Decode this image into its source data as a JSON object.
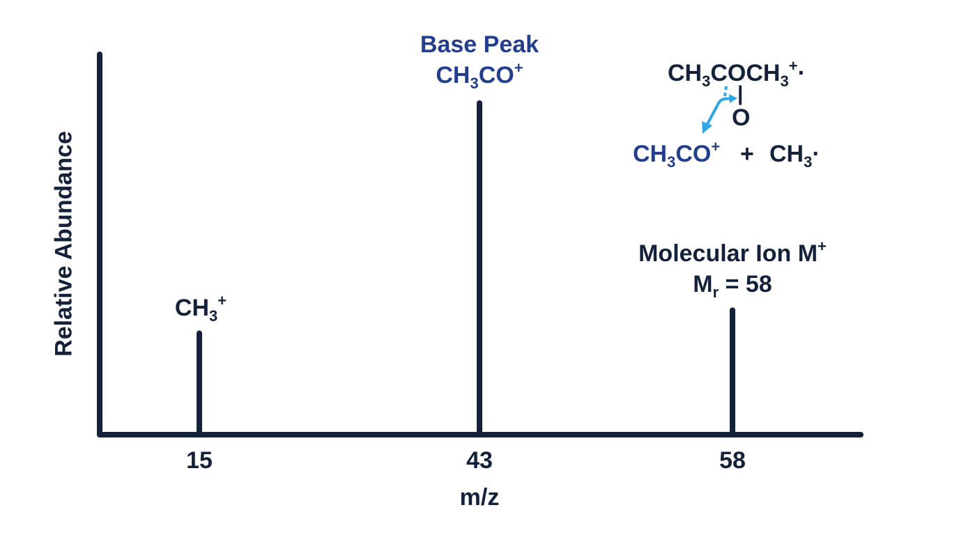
{
  "chart_data": {
    "type": "bar",
    "title": "",
    "xlabel": "m/z",
    "ylabel": "Relative Abundance",
    "x": [
      15,
      43,
      58
    ],
    "tick_labels": [
      "15",
      "43",
      "58"
    ],
    "values": [
      30,
      100,
      37
    ],
    "ylim": [
      0,
      110
    ],
    "grid": false,
    "annotations": {
      "peak15": {
        "formula": "CH",
        "sub": "3",
        "sup": "+"
      },
      "peak43_title": "Base Peak",
      "peak43": {
        "formula": "CH",
        "sub": "3",
        "rest": "CO",
        "sup": "+"
      },
      "peak58_title": "Molecular Ion M",
      "peak58_title_sup": "+",
      "peak58_mr": {
        "m": "M",
        "sub": "r",
        "rest": " = 58"
      }
    },
    "mechanism": {
      "parent": {
        "a": "CH",
        "a_sub": "3",
        "b": "COCH",
        "b_sub": "3",
        "sup": "+",
        "dot": "·"
      },
      "carbonyl_bond": "|",
      "carbonyl_o": "O",
      "product1": {
        "a": "CH",
        "a_sub": "3",
        "b": "CO",
        "sup": "+"
      },
      "plus": "+",
      "product2": {
        "a": "CH",
        "a_sub": "3",
        "dot": "·"
      }
    }
  },
  "colors": {
    "axis": "#14213a",
    "blue_text": "#243e8f",
    "arrow": "#2fa7e6"
  }
}
